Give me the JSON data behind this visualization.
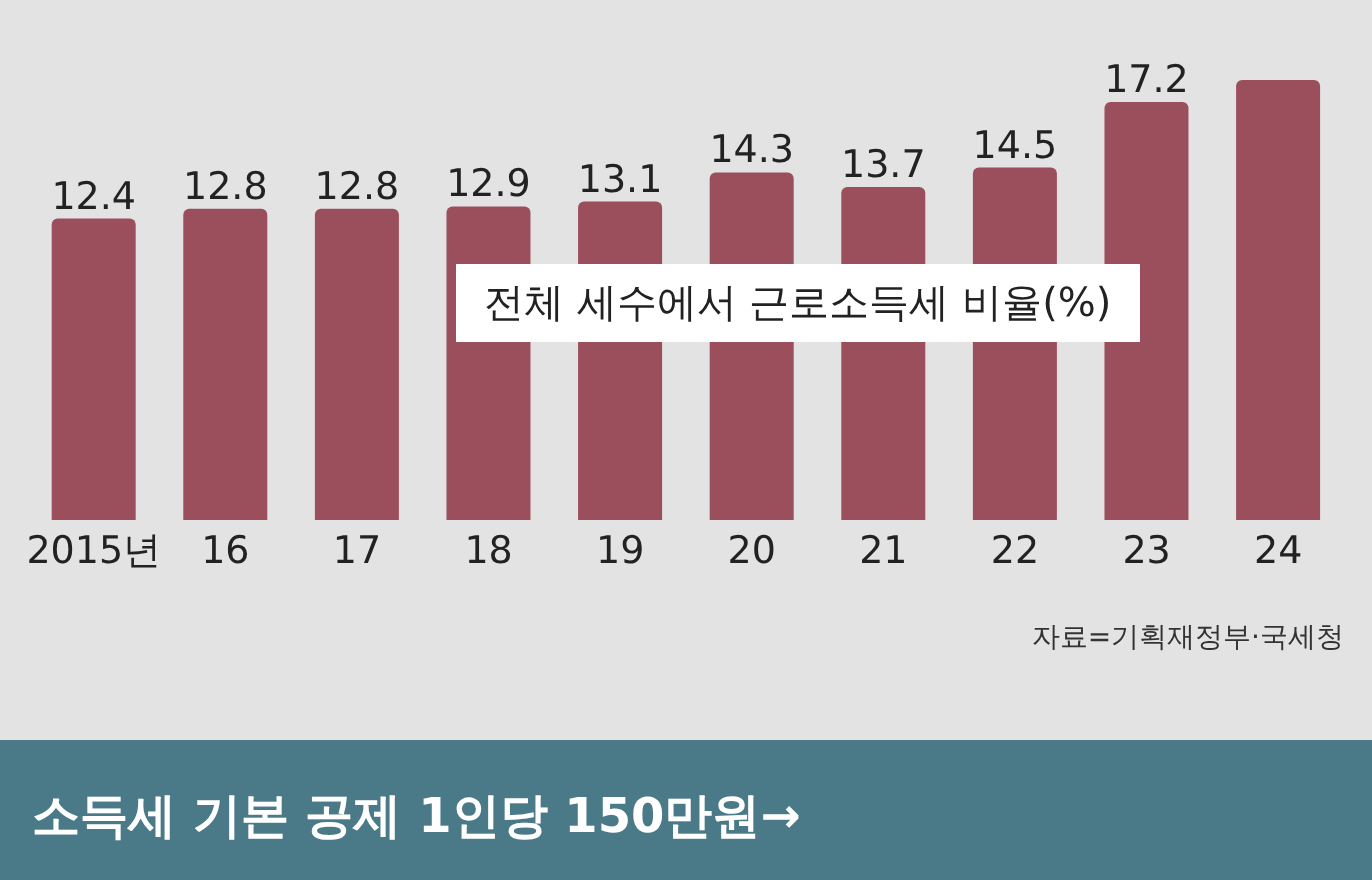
{
  "chart_data": {
    "type": "bar",
    "title": "소득세 기본 공제 1인당 150만원→",
    "subtitle": "전체 세수에서 근로소득세 비율(%)",
    "annotations": [
      "자료=기획재정부·국세청"
    ],
    "categories": [
      "2015년",
      "16",
      "17",
      "18",
      "19",
      "20",
      "21",
      "22",
      "23",
      "24"
    ],
    "values": [
      12.4,
      12.8,
      12.8,
      12.9,
      13.1,
      14.3,
      13.7,
      14.5,
      17.2,
      18.1
    ],
    "value_labels": [
      "12.4",
      "12.8",
      "12.8",
      "12.9",
      "13.1",
      "14.3",
      "13.7",
      "14.5",
      "17.2",
      null
    ],
    "color": "#9b4e5c"
  }
}
